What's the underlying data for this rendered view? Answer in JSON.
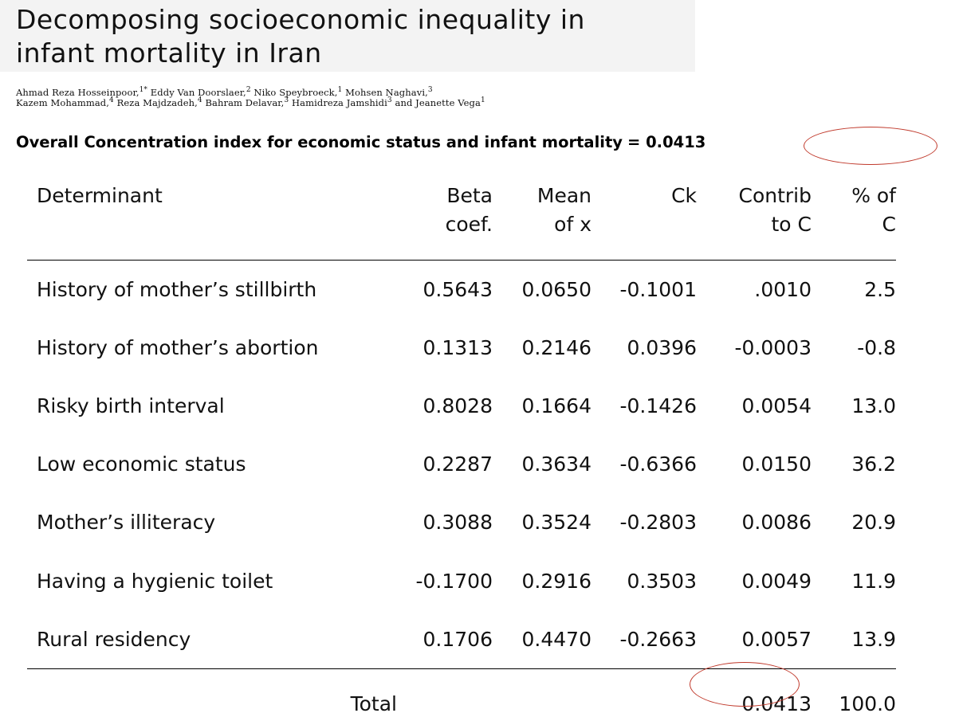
{
  "paper": {
    "title_line1": "Decomposing socioeconomic inequality in",
    "title_line2": "infant mortality in Iran",
    "authors_line1_names": [
      "Ahmad Reza Hosseinpoor,",
      "Eddy Van Doorslaer,",
      "Niko Speybroeck,",
      "Mohsen Naghavi,"
    ],
    "authors_line1_sups": [
      "1*",
      "2",
      "1",
      "3"
    ],
    "authors_line2_names": [
      "Kazem Mohammad,",
      "Reza Majdzadeh,",
      "Bahram Delavar,",
      "Hamidreza Jamshidi",
      "and Jeanette Vega"
    ],
    "authors_line2_sups": [
      "4",
      "4",
      "3",
      "3",
      "1"
    ]
  },
  "summary": {
    "label": "Overall Concentration index for economic status and infant mortality",
    "value": "= 0.0413"
  },
  "table": {
    "headers": [
      {
        "line1": "Determinant",
        "line2": ""
      },
      {
        "line1": "Beta",
        "line2": "coef."
      },
      {
        "line1": "Mean",
        "line2": "of x"
      },
      {
        "line1": "Ck",
        "line2": ""
      },
      {
        "line1": "Contrib",
        "line2": "to C"
      },
      {
        "line1": "% of",
        "line2": "C"
      }
    ],
    "rows": [
      [
        "History of mother’s stillbirth",
        "0.5643",
        "0.0650",
        "-0.1001",
        ".0010",
        "2.5"
      ],
      [
        "History of mother’s abortion",
        "0.1313",
        "0.2146",
        "0.0396",
        "-0.0003",
        "-0.8"
      ],
      [
        "Risky birth interval",
        "0.8028",
        "0.1664",
        "-0.1426",
        "0.0054",
        "13.0"
      ],
      [
        "Low economic status",
        "0.2287",
        "0.3634",
        "-0.6366",
        "0.0150",
        "36.2"
      ],
      [
        "Mother’s illiteracy",
        "0.3088",
        "0.3524",
        "-0.2803",
        "0.0086",
        "20.9"
      ],
      [
        "Having a hygienic toilet",
        "-0.1700",
        "0.2916",
        "0.3503",
        "0.0049",
        "11.9"
      ],
      [
        "Rural residency",
        "0.1706",
        "0.4470",
        "-0.2663",
        "0.0057",
        "13.9"
      ]
    ],
    "total": {
      "label": "Total",
      "contrib": "0.0413",
      "pct": "100.0"
    }
  },
  "colors": {
    "highlight_ellipse": "#c0392b",
    "title_band": "#f3f3f3"
  }
}
